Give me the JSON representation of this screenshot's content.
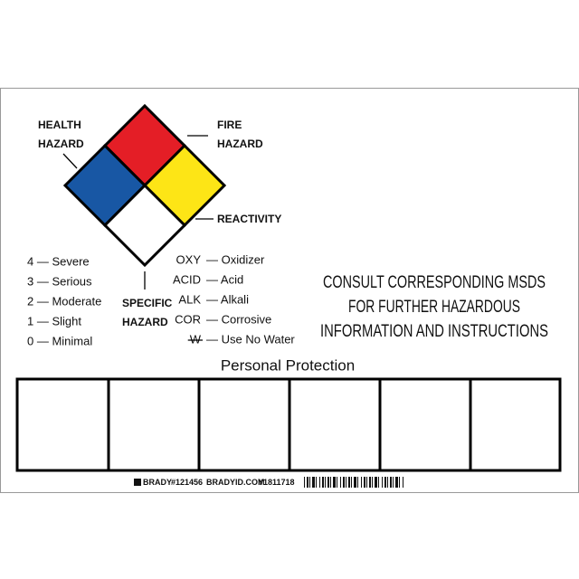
{
  "diamond": {
    "health_label": [
      "HEALTH",
      "HAZARD"
    ],
    "fire_label": [
      "FIRE",
      "HAZARD"
    ],
    "reactivity_label": "REACTIVITY",
    "specific_label": [
      "SPECIFIC",
      "HAZARD"
    ]
  },
  "ratings": [
    "4 — Severe",
    "3 — Serious",
    "2 — Moderate",
    "1 — Slight",
    "0 — Minimal"
  ],
  "codes": [
    {
      "code": "OXY",
      "description": "— Oxidizer"
    },
    {
      "code": "ACID",
      "description": "— Acid"
    },
    {
      "code": "ALK",
      "description": "— Alkali"
    },
    {
      "code": "COR",
      "description": "— Corrosive"
    },
    {
      "code": "W",
      "description": "— Use No Water"
    }
  ],
  "notice": [
    "CONSULT CORRESPONDING MSDS",
    "FOR FURTHER HAZARDOUS",
    "INFORMATION AND INSTRUCTIONS"
  ],
  "protection_title": "Personal Protection",
  "footer": {
    "brand": "BRADY",
    "part": "#121456",
    "website": "BRADYID.COM",
    "code": "Y1811718"
  }
}
